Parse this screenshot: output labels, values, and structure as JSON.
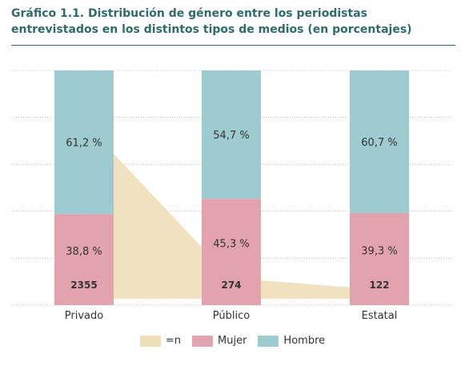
{
  "chart_data": {
    "type": "bar",
    "stacked": true,
    "title": "Gráfico 1.1. Distribución de género entre los periodistas entrevistados en los distintos tipos de medios (en porcentajes)",
    "categories": [
      "Privado",
      "Público",
      "Estatal"
    ],
    "series": [
      {
        "name": "Mujer",
        "values": [
          38.8,
          45.3,
          39.3
        ],
        "labels": [
          "38,8 %",
          "45,3 %",
          "39,3 %"
        ],
        "color": "#e3a3ae"
      },
      {
        "name": "Hombre",
        "values": [
          61.2,
          54.7,
          60.7
        ],
        "labels": [
          "61,2 %",
          "54,7 %",
          "60,7 %"
        ],
        "color": "#9dcbcf"
      }
    ],
    "n": {
      "name": "=n",
      "values": [
        2355,
        274,
        122
      ],
      "labels": [
        "2355",
        "274",
        "122"
      ],
      "color": "#efdfb8"
    },
    "ylim": [
      0,
      100
    ],
    "grid": true,
    "legend_position": "bottom"
  }
}
